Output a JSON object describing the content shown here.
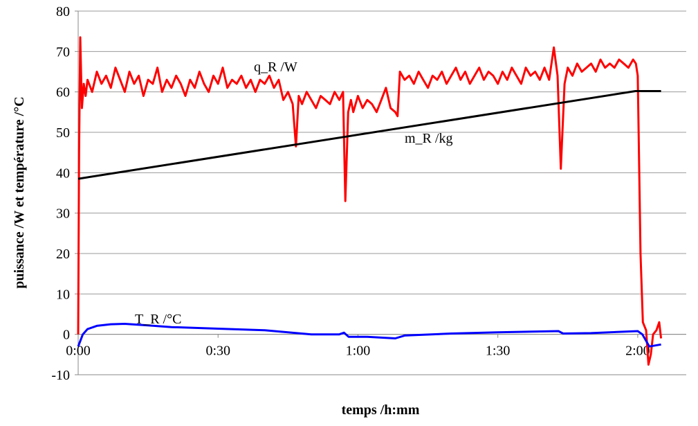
{
  "chart_data": {
    "type": "line",
    "y_label": "puissance /W et température /°C",
    "x_label": "temps /h:mm",
    "xlim": [
      0,
      130.4
    ],
    "xticks": [
      {
        "value": 0,
        "label": "0:00"
      },
      {
        "value": 30,
        "label": "0:30"
      },
      {
        "value": 60,
        "label": "1:00"
      },
      {
        "value": 90,
        "label": "1:30"
      },
      {
        "value": 120,
        "label": "2:00"
      }
    ],
    "ylim": [
      -10,
      80
    ],
    "yticks": [
      -10,
      0,
      10,
      20,
      30,
      40,
      50,
      60,
      70,
      80
    ],
    "grid": true,
    "series": [
      {
        "name": "q_R /W",
        "color": "#ff0000",
        "x": [
          0,
          0.2,
          0.45,
          0.8,
          1.2,
          1.6,
          2,
          3,
          4,
          5,
          6,
          7,
          8,
          9,
          10,
          11,
          12,
          13,
          14,
          15,
          16,
          17,
          18,
          19,
          20,
          21,
          22,
          23,
          24,
          25,
          26,
          27,
          28,
          29,
          30,
          31,
          32,
          33,
          34,
          35,
          36,
          37,
          38,
          39,
          40,
          41,
          42,
          43,
          44,
          45,
          46,
          46.7,
          47.3,
          48,
          49,
          50,
          51,
          52,
          53,
          54,
          55,
          56,
          56.8,
          57.3,
          57.9,
          58.5,
          59,
          60,
          61,
          62,
          63,
          64,
          65,
          66,
          67,
          68,
          68.5,
          69,
          70,
          71,
          72,
          73,
          74,
          75,
          76,
          77,
          78,
          79,
          80,
          81,
          82,
          83,
          84,
          85,
          86,
          87,
          88,
          89,
          90,
          91,
          92,
          93,
          94,
          95,
          96,
          97,
          98,
          99,
          100,
          101,
          102,
          102.8,
          103.5,
          104.3,
          105,
          106,
          107,
          108,
          109,
          110,
          111,
          112,
          113,
          114,
          115,
          116,
          117,
          118,
          119,
          119.6,
          120,
          120.6,
          121.1,
          121.8,
          122.3,
          122.8,
          123.3,
          124,
          124.6,
          125
        ],
        "values": [
          0,
          45,
          73.5,
          56,
          62,
          59,
          63,
          60,
          65,
          62,
          64,
          61,
          66,
          63,
          60,
          65,
          62,
          64,
          59,
          63,
          62,
          66,
          60,
          63,
          61,
          64,
          62,
          59,
          63,
          61,
          65,
          62,
          60,
          64,
          62,
          66,
          61,
          63,
          62,
          64,
          61,
          63,
          60,
          63,
          62,
          64,
          61,
          63,
          58,
          60,
          57,
          46.5,
          59,
          57,
          60,
          58,
          56,
          59,
          58,
          57,
          60,
          58,
          60,
          33,
          55,
          58,
          55,
          59,
          56,
          58,
          57,
          55,
          58,
          61,
          56,
          55,
          54,
          65,
          63,
          64,
          62,
          65,
          63,
          61,
          64,
          63,
          65,
          62,
          64,
          66,
          63,
          65,
          62,
          64,
          66,
          63,
          65,
          64,
          62,
          65,
          63,
          66,
          64,
          62,
          66,
          64,
          65,
          63,
          66,
          63,
          71,
          64,
          41,
          62,
          66,
          64,
          67,
          65,
          66,
          67,
          65,
          68,
          66,
          67,
          66,
          68,
          67,
          66,
          68,
          67,
          64,
          20,
          3,
          1,
          -7.5,
          -5,
          0,
          1,
          3,
          -1
        ]
      },
      {
        "name": "m_R /kg",
        "color": "#000000",
        "x": [
          0,
          119.5,
          125
        ],
        "values": [
          38.5,
          60.2,
          60.2
        ]
      },
      {
        "name": "T_R /°C",
        "color": "#0000ff",
        "x": [
          0,
          0.5,
          1,
          2,
          4,
          7,
          10,
          15,
          20,
          30,
          40,
          45,
          50,
          56,
          57,
          58,
          62,
          68,
          70,
          80,
          90,
          103,
          104,
          110,
          120,
          121,
          122.5,
          125
        ],
        "values": [
          -3,
          -1.5,
          0,
          1.3,
          2.1,
          2.5,
          2.6,
          2.2,
          1.8,
          1.4,
          1,
          0.5,
          0,
          0,
          0.4,
          -0.6,
          -0.6,
          -1,
          -0.3,
          0.2,
          0.5,
          0.8,
          0.2,
          0.3,
          0.8,
          0,
          -3,
          -2.5
        ]
      }
    ]
  }
}
